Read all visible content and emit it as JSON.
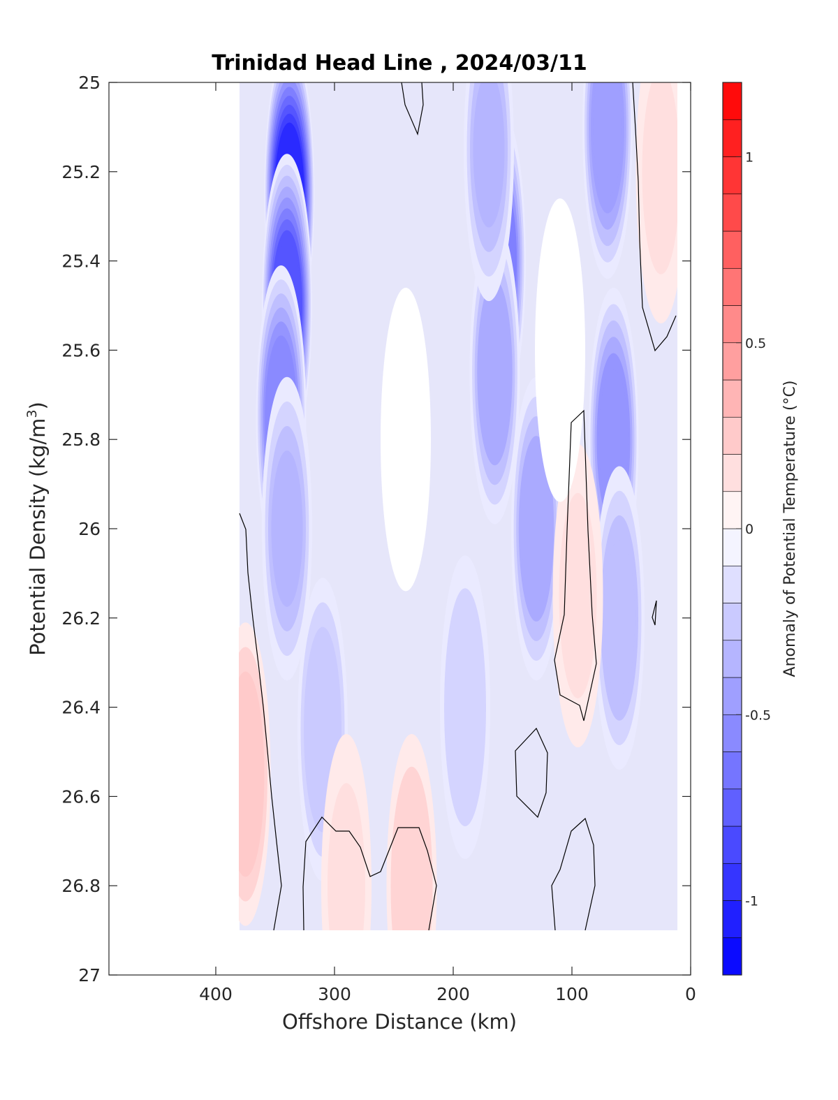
{
  "chart_data": {
    "type": "heatmap",
    "title": "Trinidad Head Line , 2024/03/11",
    "xlabel": "Offshore Distance (km)",
    "ylabel": "Potential Density (kg/m",
    "ylabel_sup": "3",
    "ylabel_close": ")",
    "xlim": [
      490,
      0
    ],
    "ylim": [
      25,
      27
    ],
    "x_reversed": true,
    "y_reversed": true,
    "xticks": [
      400,
      300,
      200,
      100,
      0
    ],
    "xtick_labels": [
      "400",
      "300",
      "200",
      "100",
      "0"
    ],
    "yticks": [
      25,
      25.2,
      25.4,
      25.6,
      25.8,
      26,
      26.2,
      26.4,
      26.6,
      26.8,
      27
    ],
    "ytick_labels": [
      "25",
      "25.2",
      "25.4",
      "25.6",
      "25.8",
      "26",
      "26.2",
      "26.4",
      "26.6",
      "26.8",
      "27"
    ],
    "colorbar": {
      "label": "Anomaly of Potential Temperature (°C)",
      "range": [
        -1.2,
        1.2
      ],
      "levels": [
        -1.2,
        -1.1,
        -1.0,
        -0.9,
        -0.8,
        -0.7,
        -0.6,
        -0.5,
        -0.4,
        -0.3,
        -0.2,
        -0.1,
        0,
        0.1,
        0.2,
        0.3,
        0.4,
        0.5,
        0.6,
        0.7,
        0.8,
        0.9,
        1.0,
        1.1,
        1.2
      ],
      "ticks": [
        -1,
        -0.5,
        0,
        0.5,
        1
      ],
      "tick_labels": [
        "-1",
        "-0.5",
        "0",
        "0.5",
        "1"
      ],
      "colormap": "blue-white-red"
    },
    "colors": {
      "negative": "#0000ff",
      "neutral": "#ffffff",
      "positive": "#ff0000",
      "zero_contour": "#000000"
    },
    "data_extent": {
      "x": [
        380,
        10
      ],
      "y": [
        25,
        26.9
      ]
    },
    "anomaly_features": [
      {
        "x": 338,
        "y": 25.25,
        "value": -1.0
      },
      {
        "x": 340,
        "y": 25.5,
        "value": -0.8
      },
      {
        "x": 345,
        "y": 25.75,
        "value": -0.55
      },
      {
        "x": 340,
        "y": 26.0,
        "value": -0.35
      },
      {
        "x": 310,
        "y": 26.45,
        "value": -0.25
      },
      {
        "x": 160,
        "y": 25.4,
        "value": -0.6
      },
      {
        "x": 165,
        "y": 25.65,
        "value": -0.4
      },
      {
        "x": 170,
        "y": 25.15,
        "value": -0.35
      },
      {
        "x": 190,
        "y": 26.4,
        "value": -0.2
      },
      {
        "x": 70,
        "y": 25.1,
        "value": -0.45
      },
      {
        "x": 65,
        "y": 25.8,
        "value": -0.5
      },
      {
        "x": 60,
        "y": 26.2,
        "value": -0.3
      },
      {
        "x": 130,
        "y": 26.0,
        "value": -0.4
      },
      {
        "x": 25,
        "y": 25.2,
        "value": 0.15
      },
      {
        "x": 375,
        "y": 26.55,
        "value": 0.25
      },
      {
        "x": 95,
        "y": 26.15,
        "value": 0.15
      },
      {
        "x": 290,
        "y": 26.8,
        "value": 0.15
      },
      {
        "x": 235,
        "y": 26.8,
        "value": 0.2
      },
      {
        "x": 240,
        "y": 25.8,
        "value": 0.0
      },
      {
        "x": 110,
        "y": 25.6,
        "value": 0.0
      }
    ]
  }
}
